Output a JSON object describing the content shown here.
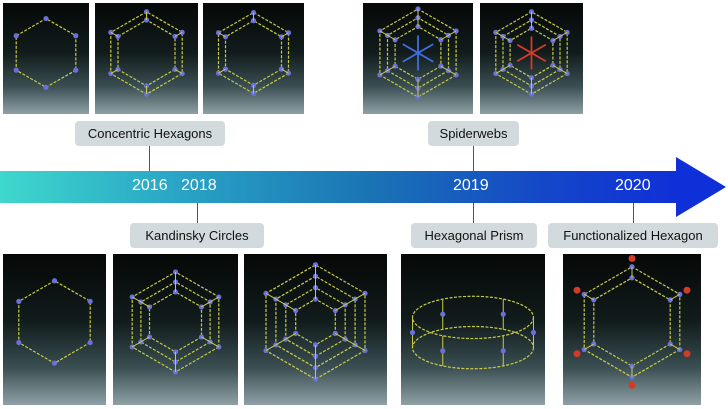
{
  "timeline": {
    "years": [
      "2016",
      "2018",
      "2019",
      "2020"
    ]
  },
  "structures": {
    "concentric_hexagons": "Concentric Hexagons",
    "spiderwebs": "Spiderwebs",
    "kandinsky_circles": "Kandinsky Circles",
    "hexagonal_prism": "Hexagonal Prism",
    "functionalized_hexagon": "Functionalized Hexagon"
  },
  "colors": {
    "molecule_bond": "#c8cc45",
    "metal_node": "#6b6fd8",
    "accent_red": "#d23a2a",
    "highlight_blue": "#3d6fe0",
    "arrow_start": "#3fd8cc",
    "arrow_end": "#0f2fd8"
  }
}
